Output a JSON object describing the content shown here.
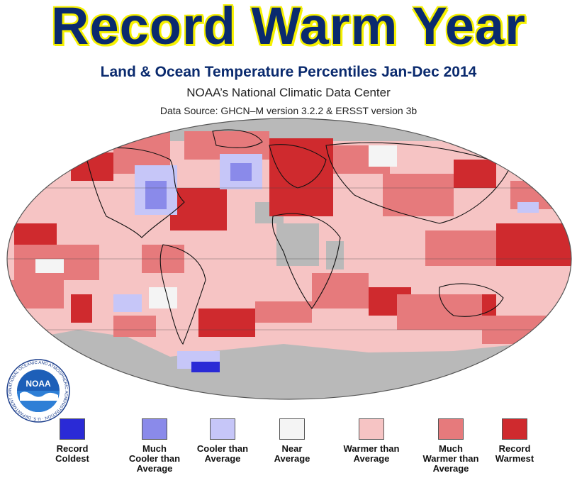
{
  "headline": "Record Warm Year",
  "subtitle": "Land & Ocean Temperature Percentiles Jan-Dec 2014",
  "organization": "NOAA’s National Climatic Data Center",
  "data_source": "Data Source: GHCN–M version 3.2.2 & ERSST version 3b",
  "logo": {
    "text": "NOAA",
    "ring_text": "NATIONAL OCEANIC AND ATMOSPHERIC ADMINISTRATION · U.S. DEPARTMENT OF COMMERCE"
  },
  "colors": {
    "record_coldest": "#2a2ad6",
    "much_cooler": "#8a8aea",
    "cooler": "#c6c6f8",
    "near_average": "#f4f4f4",
    "warmer": "#f6c4c4",
    "much_warmer": "#e67a7c",
    "record_warmest": "#cf2a2e",
    "missing": "#b9b9b9"
  },
  "legend": [
    {
      "label": "Record\nColdest",
      "color": "#2a2ad6"
    },
    {
      "label": "Much\nCooler than\nAverage",
      "color": "#8a8aea"
    },
    {
      "label": "Cooler than\nAverage",
      "color": "#c6c6f8"
    },
    {
      "label": "Near\nAverage",
      "color": "#f4f4f4"
    },
    {
      "label": "Warmer than\nAverage",
      "color": "#f6c4c4"
    },
    {
      "label": "Much\nWarmer than\nAverage",
      "color": "#e67a7c"
    },
    {
      "label": "Record\nWarmest",
      "color": "#cf2a2e"
    }
  ]
}
